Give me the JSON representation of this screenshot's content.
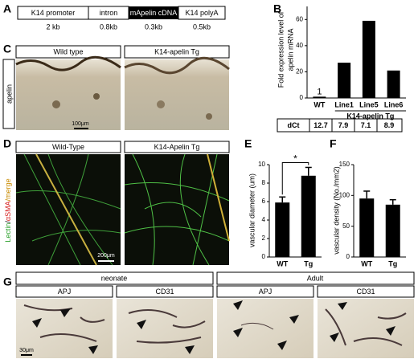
{
  "figure": {
    "panel_labels": [
      "A",
      "B",
      "C",
      "D",
      "E",
      "F",
      "G"
    ],
    "construct": [
      {
        "label": "K14 promoter",
        "size": "2 kb"
      },
      {
        "label": "intron",
        "size": "0.8kb"
      },
      {
        "label": "mApelin cDNA",
        "size": "0.3kb"
      },
      {
        "label": "K14 polyA",
        "size": "0.5kb"
      }
    ],
    "panel_c": {
      "headers": [
        "Wild type",
        "K14-apelin Tg"
      ],
      "side_label": "apelin",
      "scale_bar": "100μm"
    },
    "panel_d": {
      "headers": [
        "Wild-Type",
        "K14-Apelin Tg"
      ],
      "side_label_parts": [
        "Lectin",
        "/",
        "αSMA",
        "/merge"
      ],
      "scale_bar": "200μm"
    },
    "panel_g": {
      "groups": [
        "neonate",
        "Adult"
      ],
      "headers": [
        "APJ",
        "CD31",
        "APJ",
        "CD31"
      ],
      "scale_bar": "30μm"
    },
    "table_b": {
      "header": "dCt",
      "values": [
        12.7,
        7.9,
        7.1,
        8.9
      ]
    }
  },
  "chart_data": [
    {
      "type": "bar",
      "ylabel": [
        "Fold expression level of",
        "apelin mRNA"
      ],
      "categories": [
        "WT",
        "Line1",
        "Line5",
        "Line6"
      ],
      "values": [
        1,
        27,
        59,
        21
      ],
      "value_labels": [
        "1",
        null,
        null,
        null
      ],
      "group_label": "K14-apelin Tg",
      "ylim": [
        0,
        70
      ],
      "yticks": [
        0,
        20,
        40,
        60
      ],
      "color": "#000000"
    },
    {
      "type": "bar",
      "ylabel": [
        "vascular diameter (um)"
      ],
      "categories": [
        "WT",
        "Tg"
      ],
      "values": [
        5.9,
        8.8
      ],
      "errors": [
        0.6,
        0.9
      ],
      "significance": "*",
      "ylim": [
        0,
        10
      ],
      "yticks": [
        0,
        2,
        4,
        6,
        8,
        10
      ],
      "color": "#000000"
    },
    {
      "type": "bar",
      "ylabel": [
        "vascular density (No./mm2)"
      ],
      "categories": [
        "WT",
        "Tg"
      ],
      "values": [
        95,
        85
      ],
      "errors": [
        12,
        8
      ],
      "ylim": [
        0,
        150
      ],
      "yticks": [
        0,
        50,
        100,
        150
      ],
      "color": "#000000"
    }
  ]
}
